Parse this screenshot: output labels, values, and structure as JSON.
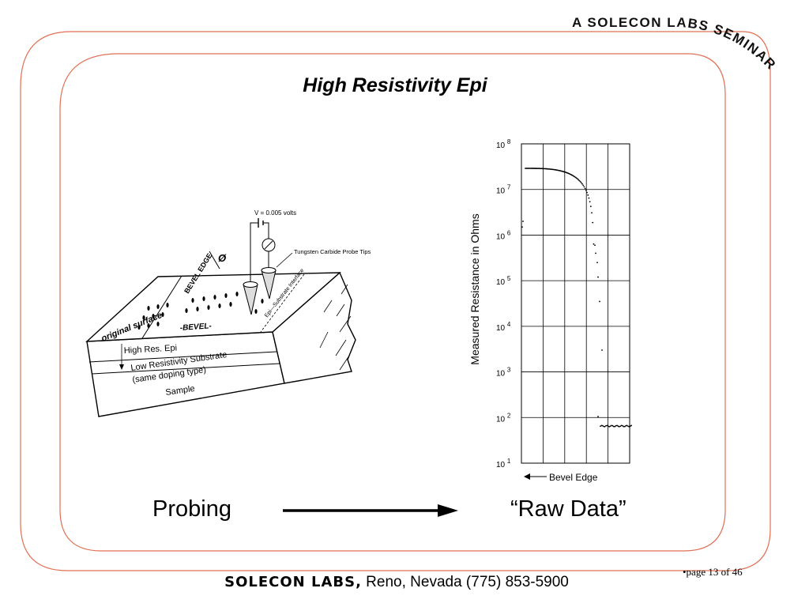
{
  "seminar_banner": "A SOLECON LABS SEMINAR",
  "title": "High Resistivity Epi",
  "diagram": {
    "voltage_label": "V = 0.005 volts",
    "probe_tips_label": "Tungsten Carbide Probe Tips",
    "angle_symbol": "Ø",
    "bevel_edge_label": "BEVEL EDGE",
    "bevel_label": "-BEVEL-",
    "original_surface_label": "original surface",
    "interface_label": "Epi—Substrate Interface",
    "layer_epi": "High Res. Epi",
    "layer_substrate_line1": "Low Resistivity Substrate",
    "layer_substrate_line2": "(same doping type)",
    "layer_sample": "Sample"
  },
  "captions": {
    "left": "Probing",
    "right": "“Raw Data”"
  },
  "chart_data": {
    "type": "scatter",
    "ylabel": "Measured Resistance in Ohms",
    "yscale": "log",
    "ylim": [
      10,
      100000000
    ],
    "y_ticks": [
      {
        "base": "10",
        "exp": "8"
      },
      {
        "base": "10",
        "exp": "7"
      },
      {
        "base": "10",
        "exp": "6"
      },
      {
        "base": "10",
        "exp": "5"
      },
      {
        "base": "10",
        "exp": "4"
      },
      {
        "base": "10",
        "exp": "3"
      },
      {
        "base": "10",
        "exp": "2"
      },
      {
        "base": "10",
        "exp": "1"
      }
    ],
    "annotation": "Bevel Edge",
    "grid": true
  },
  "footer": {
    "brand": "SOLECON LABS,",
    "rest": " Reno, Nevada (775) 853-5900"
  },
  "page_number": "•page 13 of 46"
}
